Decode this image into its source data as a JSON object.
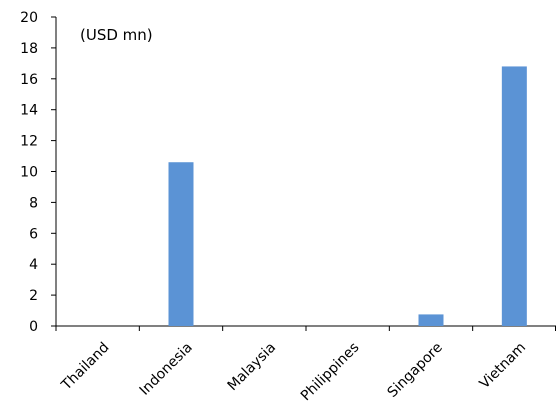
{
  "chart_data": {
    "type": "bar",
    "title": "",
    "unit_label": "(USD mn)",
    "xlabel": "",
    "ylabel": "",
    "categories": [
      "Thailand",
      "Indonesia",
      "Malaysia",
      "Philippines",
      "Singapore",
      "Vietnam"
    ],
    "values": [
      0,
      10.6,
      0,
      0,
      0.75,
      16.8
    ],
    "ylim": [
      0,
      20
    ],
    "yticks": [
      0,
      2,
      4,
      6,
      8,
      10,
      12,
      14,
      16,
      18,
      20
    ],
    "grid": false,
    "legend": "none",
    "bar_color": "#5B93D5",
    "x_tick_rotation": -45
  }
}
